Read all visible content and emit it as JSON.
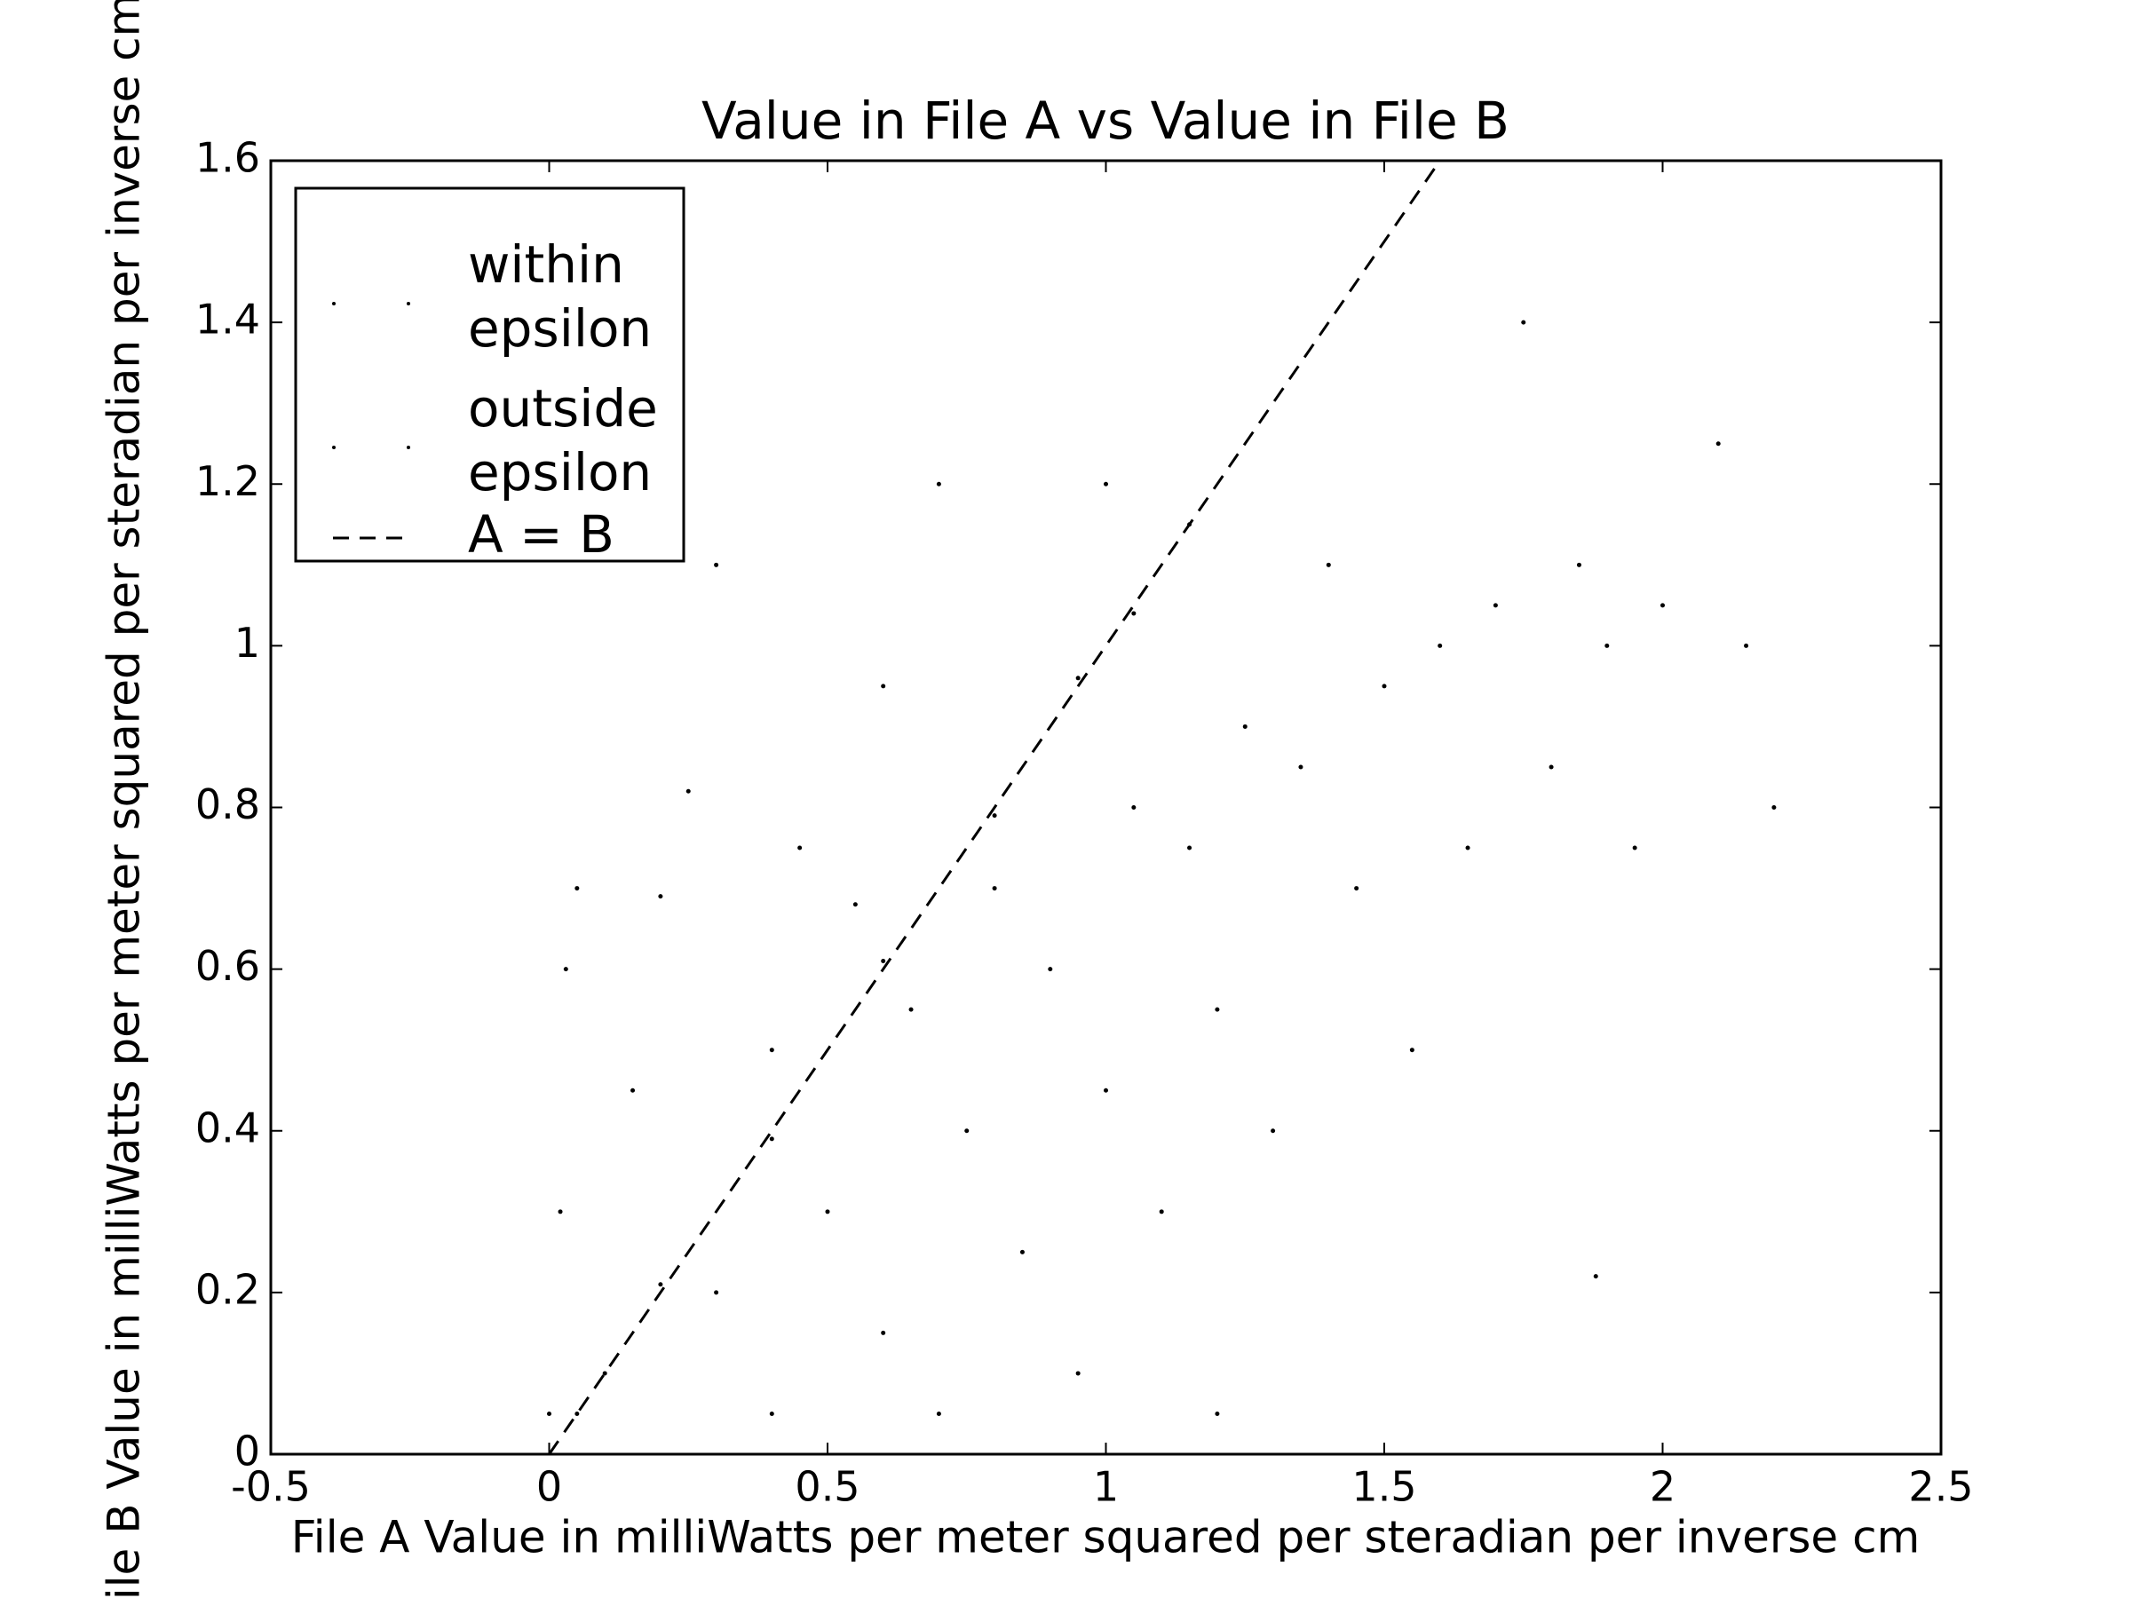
{
  "chart_data": {
    "type": "scatter",
    "title": "Value in File A vs Value in File B",
    "x_label": "File A Value in milliWatts per meter squared per steradian per inverse cm",
    "y_label": "File B Value in milliWatts per meter squared per steradian per inverse cm",
    "xlim": [
      -0.5,
      2.5
    ],
    "ylim": [
      0,
      1.6
    ],
    "xticks": [
      -0.5,
      0,
      0.5,
      1,
      1.5,
      2,
      2.5
    ],
    "yticks": [
      0,
      0.2,
      0.4,
      0.6,
      0.8,
      1,
      1.2,
      1.4,
      1.6
    ],
    "legend": "upper left",
    "series": [
      {
        "name": "within epsilon",
        "color": "#000000",
        "marker": "dot",
        "x": [
          0.05,
          0.2,
          0.4,
          0.6,
          0.8,
          0.95,
          1.05,
          1.15
        ],
        "y": [
          0.05,
          0.21,
          0.39,
          0.61,
          0.79,
          0.96,
          1.04,
          1.15
        ]
      },
      {
        "name": "outside epsilon",
        "color": "#000000",
        "marker": "dot",
        "x": [
          0.0,
          0.02,
          0.03,
          0.05,
          0.1,
          0.15,
          0.2,
          0.25,
          0.3,
          0.3,
          0.4,
          0.4,
          0.45,
          0.5,
          0.55,
          0.6,
          0.6,
          0.65,
          0.7,
          0.7,
          0.75,
          0.8,
          0.85,
          0.9,
          0.95,
          1.0,
          1.0,
          1.05,
          1.1,
          1.15,
          1.2,
          1.2,
          1.25,
          1.3,
          1.35,
          1.4,
          1.45,
          1.5,
          1.55,
          1.6,
          1.65,
          1.7,
          1.75,
          1.8,
          1.85,
          1.9,
          1.95,
          2.0,
          2.1,
          2.15,
          2.2,
          1.88
        ],
        "y": [
          0.05,
          0.3,
          0.6,
          0.7,
          0.1,
          0.45,
          0.69,
          0.82,
          1.1,
          0.2,
          0.05,
          0.5,
          0.75,
          0.3,
          0.68,
          0.15,
          0.95,
          0.55,
          0.05,
          1.2,
          0.4,
          0.7,
          0.25,
          0.6,
          0.1,
          0.45,
          1.2,
          0.8,
          0.3,
          0.75,
          0.55,
          0.05,
          0.9,
          0.4,
          0.85,
          1.1,
          0.7,
          0.95,
          0.5,
          1.0,
          0.75,
          1.05,
          1.4,
          0.85,
          1.1,
          1.0,
          0.75,
          1.05,
          1.25,
          1.0,
          0.8,
          0.22
        ]
      },
      {
        "name": "A = B",
        "color": "#000000",
        "linestyle": "dashed",
        "x": [
          0,
          1.6
        ],
        "y": [
          0,
          1.6
        ]
      }
    ]
  }
}
